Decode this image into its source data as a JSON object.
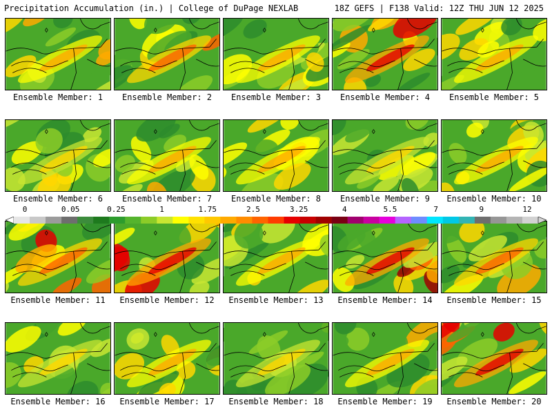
{
  "header": {
    "title_left": "Precipitation Accumulation (in.) | College of DuPage NEXLAB",
    "title_right": "18Z GEFS | F138 Valid: 12Z THU JUN 12 2025"
  },
  "members": [
    {
      "label": "Ensemble Member: 1",
      "intensity": 0.55
    },
    {
      "label": "Ensemble Member: 2",
      "intensity": 0.7
    },
    {
      "label": "Ensemble Member: 3",
      "intensity": 0.45
    },
    {
      "label": "Ensemble Member: 4",
      "intensity": 0.8
    },
    {
      "label": "Ensemble Member: 5",
      "intensity": 0.45
    },
    {
      "label": "Ensemble Member: 6",
      "intensity": 0.4
    },
    {
      "label": "Ensemble Member: 7",
      "intensity": 0.45
    },
    {
      "label": "Ensemble Member: 8",
      "intensity": 0.55
    },
    {
      "label": "Ensemble Member: 9",
      "intensity": 0.35
    },
    {
      "label": "Ensemble Member: 10",
      "intensity": 0.5
    },
    {
      "label": "Ensemble Member: 11",
      "intensity": 0.7
    },
    {
      "label": "Ensemble Member: 12",
      "intensity": 0.75
    },
    {
      "label": "Ensemble Member: 13",
      "intensity": 0.45
    },
    {
      "label": "Ensemble Member: 14",
      "intensity": 0.9
    },
    {
      "label": "Ensemble Member: 15",
      "intensity": 0.65
    },
    {
      "label": "Ensemble Member: 16",
      "intensity": 0.4
    },
    {
      "label": "Ensemble Member: 17",
      "intensity": 0.45
    },
    {
      "label": "Ensemble Member: 18",
      "intensity": 0.4
    },
    {
      "label": "Ensemble Member: 19",
      "intensity": 0.5
    },
    {
      "label": "Ensemble Member: 20",
      "intensity": 0.75
    }
  ],
  "colorbar": {
    "colors": [
      "#e6e6e6",
      "#c8c8c8",
      "#9b9b9b",
      "#6e6e6e",
      "#3c8c3c",
      "#1e7a1e",
      "#2d9c2d",
      "#55b42d",
      "#8ccc28",
      "#c8e632",
      "#ffff00",
      "#ffe100",
      "#ffc800",
      "#ffaa00",
      "#ff8c00",
      "#ff6400",
      "#ff3c00",
      "#e60000",
      "#c80000",
      "#a00000",
      "#7a0014",
      "#a0006e",
      "#c800a0",
      "#e600dc",
      "#b464ff",
      "#6e8cff",
      "#00e6ff",
      "#00c8e6",
      "#32b4b4",
      "#6e6e6e",
      "#969696",
      "#b4b4b4",
      "#d2d2d2"
    ],
    "ticks": [
      "0",
      "0.05",
      "0.25",
      "1",
      "1.75",
      "2.5",
      "3.25",
      "4",
      "5.5",
      "7",
      "9",
      "12"
    ]
  }
}
